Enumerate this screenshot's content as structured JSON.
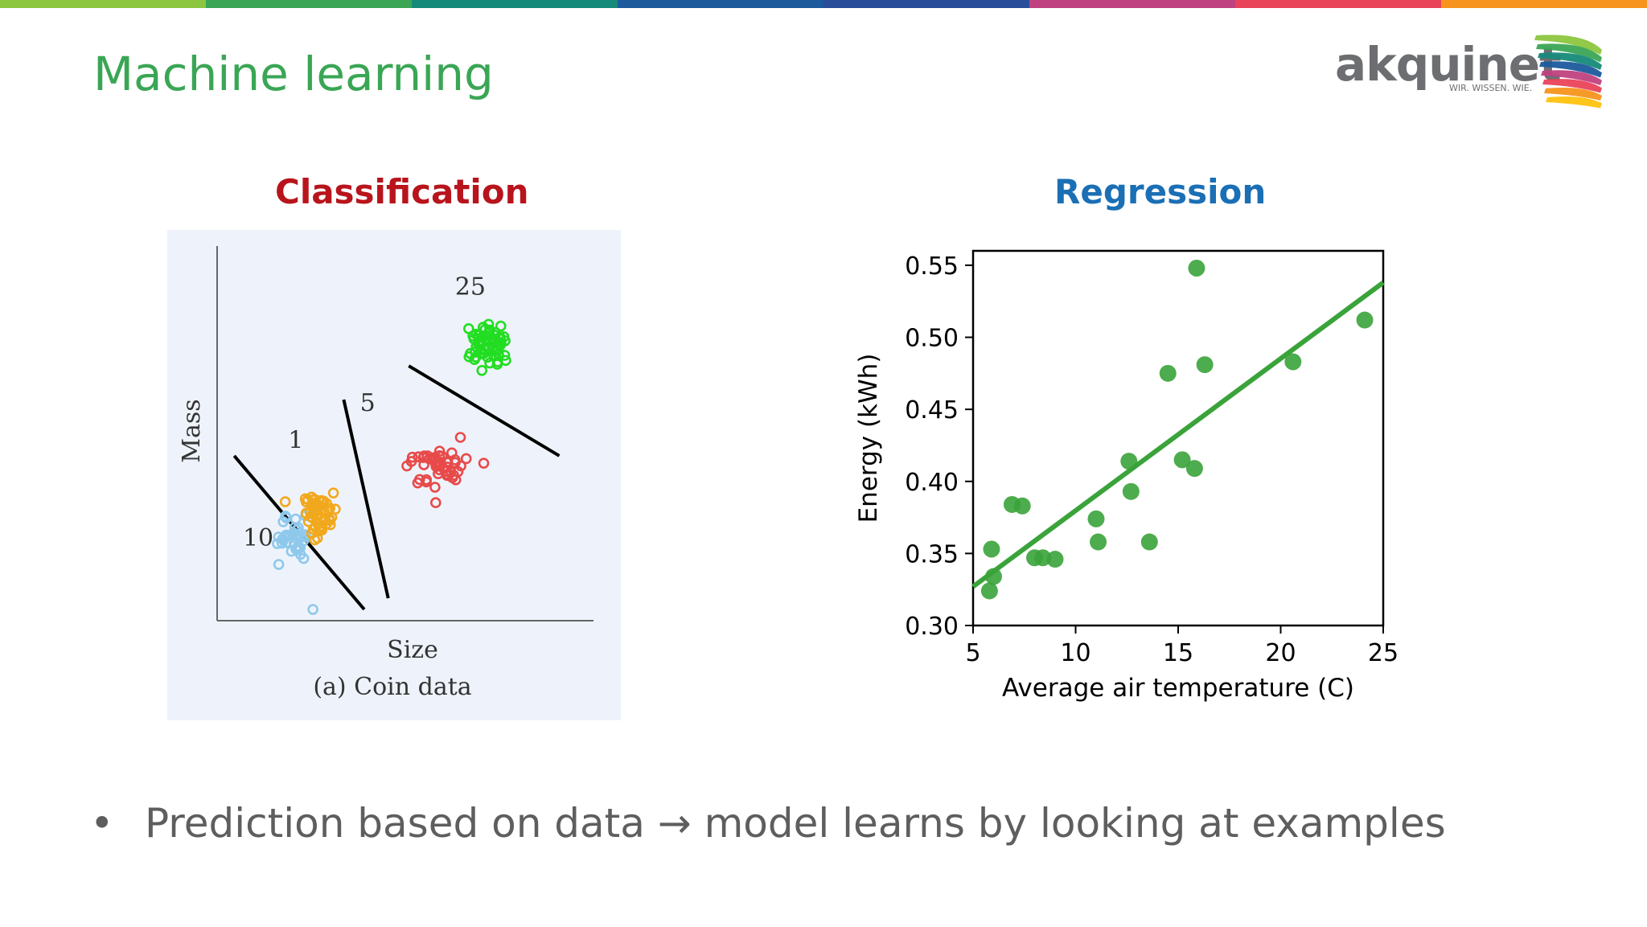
{
  "slide": {
    "title": "Machine learning",
    "top_bar_colors": [
      "#8cc63f",
      "#3aa655",
      "#168a7a",
      "#1c5a9c",
      "#2a4d9a",
      "#c0417f",
      "#e9435a",
      "#f7941d",
      "#ffc20e"
    ]
  },
  "logo": {
    "name": "akquinet",
    "tagline": "WIR. WISSEN. WIE.",
    "wing_colors": [
      "#8cc63f",
      "#3aa655",
      "#168a7a",
      "#1c5a9c",
      "#c0417f",
      "#e9435a",
      "#f7941d",
      "#ffc20e"
    ]
  },
  "classification": {
    "heading": "Classification",
    "heading_color": "#b8141c"
  },
  "regression": {
    "heading": "Regression",
    "heading_color": "#1a6fb5"
  },
  "bullet": {
    "symbol": "•",
    "text": "Prediction based on data → model learns by looking at examples"
  },
  "chart_data": [
    {
      "type": "scatter",
      "title": "",
      "caption": "(a) Coin data",
      "xlabel": "Size",
      "ylabel": "Mass",
      "series": [
        {
          "name": "10",
          "color": "#8ec9ec",
          "center": [
            2.2,
            2.2
          ],
          "spread": [
            0.35,
            0.45
          ],
          "count": 35,
          "outliers": [
            [
              2.8,
              0.3
            ],
            [
              1.8,
              1.5
            ]
          ]
        },
        {
          "name": "1",
          "color": "#f2a81d",
          "center": [
            3.0,
            2.8
          ],
          "spread": [
            0.4,
            0.5
          ],
          "count": 55,
          "outliers": []
        },
        {
          "name": "5",
          "color": "#e84a4a",
          "center": [
            6.5,
            4.2
          ],
          "spread": [
            0.65,
            0.4
          ],
          "count": 50,
          "outliers": []
        },
        {
          "name": "25",
          "color": "#22dd22",
          "center": [
            7.9,
            7.3
          ],
          "spread": [
            0.55,
            0.5
          ],
          "count": 60,
          "outliers": []
        }
      ],
      "boundaries": [
        {
          "from": [
            0.5,
            4.4
          ],
          "to": [
            4.3,
            0.3
          ]
        },
        {
          "from": [
            3.7,
            5.9
          ],
          "to": [
            5.0,
            0.6
          ]
        },
        {
          "from": [
            5.6,
            6.8
          ],
          "to": [
            10.0,
            4.4
          ]
        }
      ],
      "xlim": [
        0,
        11
      ],
      "ylim": [
        0,
        10
      ]
    },
    {
      "type": "scatter",
      "title": "",
      "xlabel": "Average air temperature (C)",
      "ylabel": "Energy (kWh)",
      "xlim": [
        5,
        25
      ],
      "ylim": [
        0.3,
        0.56
      ],
      "xticks": [
        5,
        10,
        15,
        20,
        25
      ],
      "yticks": [
        0.3,
        0.35,
        0.4,
        0.45,
        0.5,
        0.55
      ],
      "ytick_labels": [
        "0.30",
        "0.35",
        "0.40",
        "0.45",
        "0.50",
        "0.55"
      ],
      "color": "#3aa33a",
      "points": [
        [
          5.9,
          0.353
        ],
        [
          5.8,
          0.324
        ],
        [
          6.0,
          0.334
        ],
        [
          6.9,
          0.384
        ],
        [
          7.4,
          0.383
        ],
        [
          8.0,
          0.347
        ],
        [
          8.4,
          0.347
        ],
        [
          9.0,
          0.346
        ],
        [
          11.0,
          0.374
        ],
        [
          11.1,
          0.358
        ],
        [
          12.6,
          0.414
        ],
        [
          12.7,
          0.393
        ],
        [
          13.6,
          0.358
        ],
        [
          14.5,
          0.475
        ],
        [
          15.2,
          0.415
        ],
        [
          15.8,
          0.409
        ],
        [
          15.9,
          0.548
        ],
        [
          16.3,
          0.481
        ],
        [
          20.6,
          0.483
        ],
        [
          24.1,
          0.512
        ]
      ],
      "trendline": {
        "x0": 5,
        "y0": 0.327,
        "x1": 25,
        "y1": 0.538
      }
    }
  ]
}
